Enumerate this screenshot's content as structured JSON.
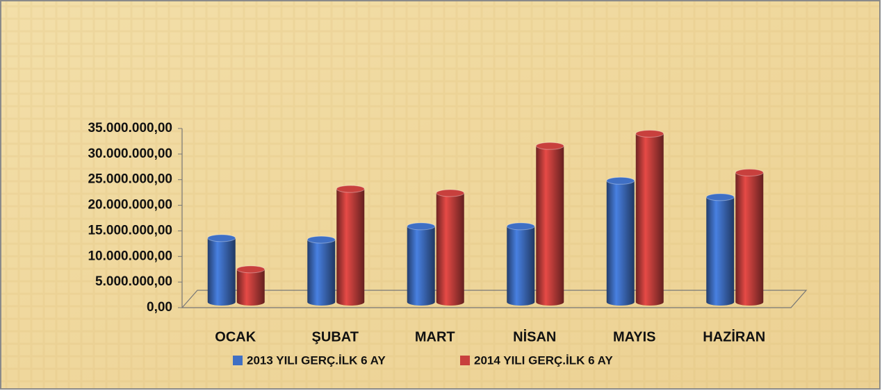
{
  "chart_data": {
    "type": "bar",
    "categories": [
      "OCAK",
      "ŞUBAT",
      "MART",
      "NİSAN",
      "MAYIS",
      "HAZİRAN"
    ],
    "series": [
      {
        "name": "2013 YILI GERÇ.İLK 6 AY",
        "color": "#3f6fc4",
        "values": [
          12500000,
          12200000,
          14800000,
          14800000,
          23700000,
          20500000
        ]
      },
      {
        "name": "2014 YILI GERÇ.İLK 6 AY",
        "color": "#c8403d",
        "values": [
          6400000,
          22100000,
          21300000,
          30500000,
          32900000,
          25300000
        ]
      }
    ],
    "ylim": [
      0,
      35000000
    ],
    "yticks": [
      {
        "value": 0,
        "label": "0,00"
      },
      {
        "value": 5000000,
        "label": "5.000.000,00"
      },
      {
        "value": 10000000,
        "label": "10.000.000,00"
      },
      {
        "value": 15000000,
        "label": "15.000.000,00"
      },
      {
        "value": 20000000,
        "label": "20.000.000,00"
      },
      {
        "value": 25000000,
        "label": "25.000.000,00"
      },
      {
        "value": 30000000,
        "label": "30.000.000,00"
      },
      {
        "value": 35000000,
        "label": "35.000.000,00"
      }
    ],
    "legend": "bottom"
  }
}
